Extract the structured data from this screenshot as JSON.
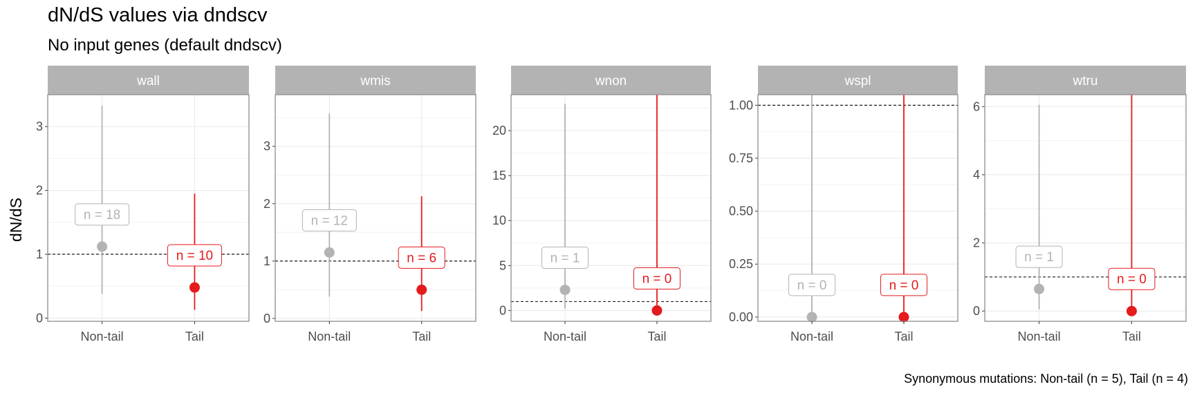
{
  "title": "dN/dS values via dndscv",
  "subtitle": "No input genes (default dndscv)",
  "caption": "Synonymous mutations: Non-tail (n = 5), Tail (n = 4)",
  "colors": {
    "non_tail": "#b3b3b3",
    "tail": "#e41a1c",
    "strip": "#b3b3b3",
    "grid": "#ebebeb",
    "border": "#8c8c8c",
    "reference_line": "#000000"
  },
  "chart_data": {
    "type": "scatter",
    "ylabel": "dN/dS",
    "categories": [
      "Non-tail",
      "Tail"
    ],
    "reference_line": 1,
    "grid": true,
    "legend": "none",
    "facets": [
      {
        "name": "wall",
        "ylim": [
          -0.05,
          3.5
        ],
        "yticks": [
          0,
          1,
          2,
          3
        ],
        "ytick_labels": [
          "0",
          "1",
          "2",
          "3"
        ],
        "points": [
          {
            "category": "Non-tail",
            "value": 1.12,
            "low": 0.38,
            "high": 3.33,
            "label": "n = 18"
          },
          {
            "category": "Tail",
            "value": 0.48,
            "low": 0.13,
            "high": 1.95,
            "label": "n = 10"
          }
        ]
      },
      {
        "name": "wmis",
        "ylim": [
          -0.05,
          3.9
        ],
        "yticks": [
          0,
          1,
          2,
          3
        ],
        "ytick_labels": [
          "0",
          "1",
          "2",
          "3"
        ],
        "points": [
          {
            "category": "Non-tail",
            "value": 1.15,
            "low": 0.38,
            "high": 3.57,
            "label": "n = 12"
          },
          {
            "category": "Tail",
            "value": 0.5,
            "low": 0.13,
            "high": 2.13,
            "label": "n = 6"
          }
        ]
      },
      {
        "name": "wnon",
        "ylim": [
          -1.2,
          24.0
        ],
        "yticks": [
          0,
          5,
          10,
          15,
          20
        ],
        "ytick_labels": [
          "0",
          "5",
          "10",
          "15",
          "20"
        ],
        "points": [
          {
            "category": "Non-tail",
            "value": 2.3,
            "low": 0.2,
            "high": 23.0,
            "label": "n = 1"
          },
          {
            "category": "Tail",
            "value": 0,
            "low": 0,
            "high": 24.0,
            "label": "n = 0"
          }
        ]
      },
      {
        "name": "wspl",
        "ylim": [
          -0.02,
          1.05
        ],
        "yticks": [
          0,
          0.25,
          0.5,
          0.75,
          1.0
        ],
        "ytick_labels": [
          "0.00",
          "0.25",
          "0.50",
          "0.75",
          "1.00"
        ],
        "points": [
          {
            "category": "Non-tail",
            "value": 0,
            "low": 0,
            "high": 1.05,
            "label": "n = 0"
          },
          {
            "category": "Tail",
            "value": 0,
            "low": 0,
            "high": 1.05,
            "label": "n = 0"
          }
        ]
      },
      {
        "name": "wtru",
        "ylim": [
          -0.3,
          6.35
        ],
        "yticks": [
          0,
          2,
          4,
          6
        ],
        "ytick_labels": [
          "0",
          "2",
          "4",
          "6"
        ],
        "points": [
          {
            "category": "Non-tail",
            "value": 0.65,
            "low": 0.05,
            "high": 6.05,
            "label": "n = 1"
          },
          {
            "category": "Tail",
            "value": 0,
            "low": 0,
            "high": 6.35,
            "label": "n = 0"
          }
        ]
      }
    ]
  }
}
